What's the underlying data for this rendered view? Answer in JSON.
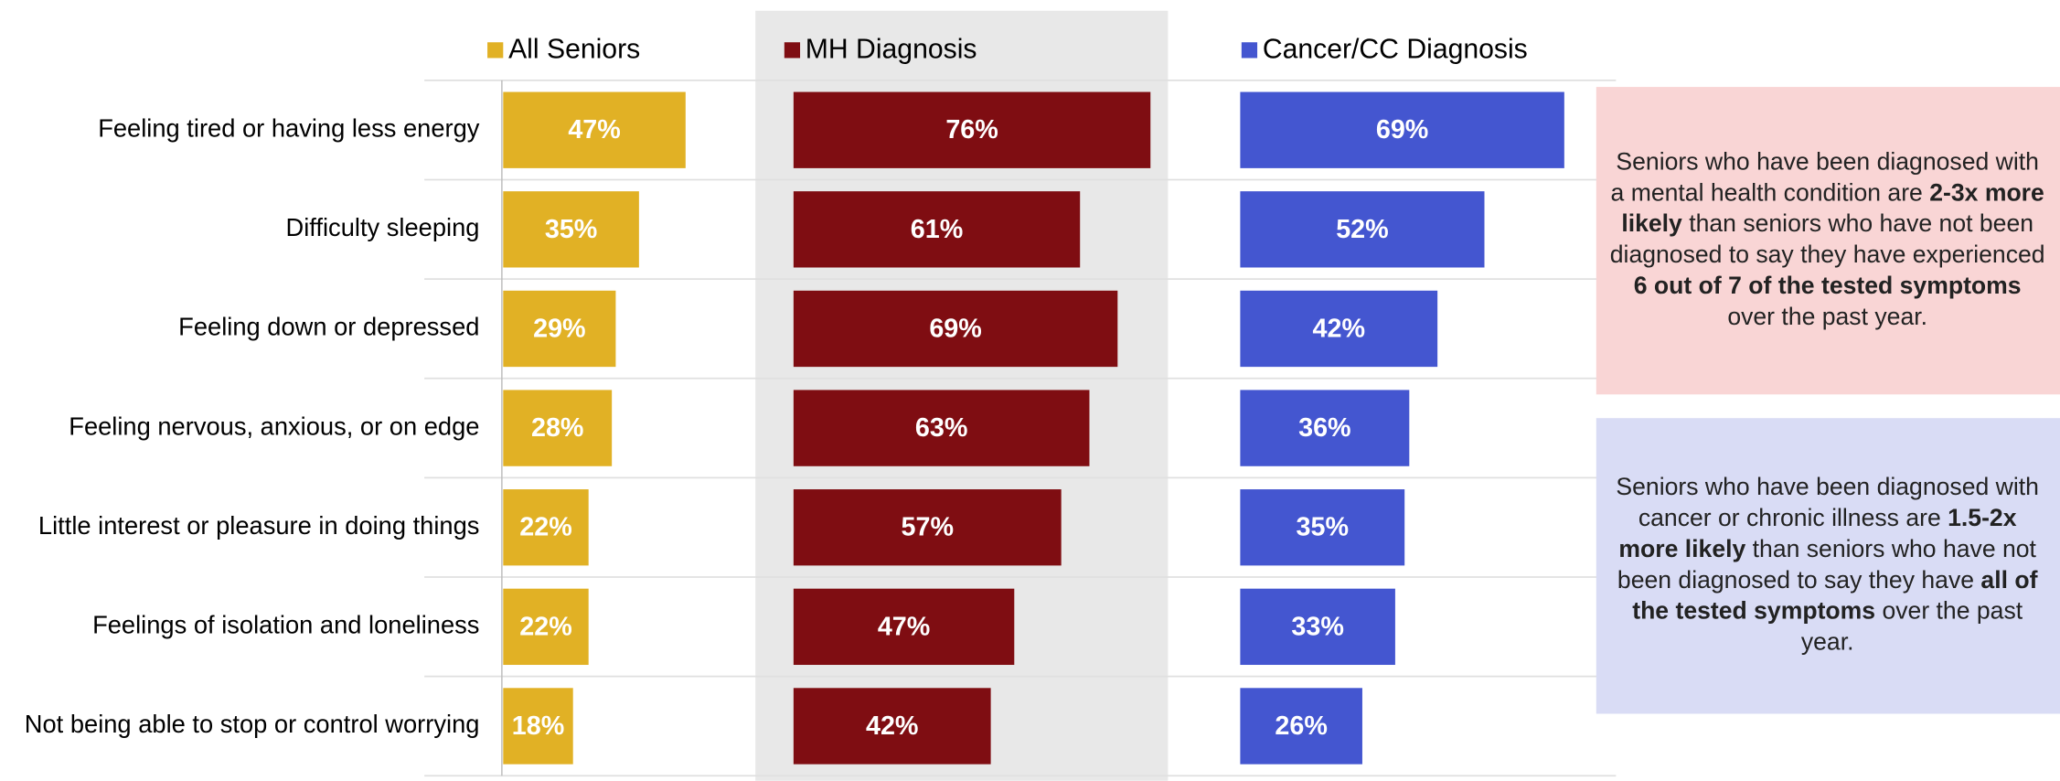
{
  "chart_data": {
    "type": "bar",
    "orientation": "horizontal",
    "categories": [
      "Feeling tired or having less energy",
      "Difficulty sleeping",
      "Feeling down or depressed",
      "Feeling nervous, anxious, or on edge",
      "Little interest or pleasure in doing things",
      "Feelings of isolation and loneliness",
      "Not being able to stop or control worrying"
    ],
    "series": [
      {
        "name": "All Seniors",
        "color": "#e1b125",
        "xlim": [
          0,
          65
        ],
        "values": [
          47,
          35,
          29,
          28,
          22,
          22,
          18
        ],
        "value_labels": [
          "47%",
          "35%",
          "29%",
          "28%",
          "22%",
          "22%",
          "18%"
        ]
      },
      {
        "name": "MH Diagnosis",
        "color": "#7f0d12",
        "xlim": [
          0,
          80
        ],
        "highlight": "#e8e8e8",
        "values": [
          76,
          61,
          69,
          63,
          57,
          47,
          42
        ],
        "value_labels": [
          "76%",
          "61%",
          "69%",
          "63%",
          "57%",
          "47%",
          "42%"
        ]
      },
      {
        "name": "Cancer/CC Diagnosis",
        "color": "#4456d0",
        "xlim": [
          0,
          80
        ],
        "values": [
          69,
          52,
          42,
          36,
          35,
          33,
          26
        ],
        "value_labels": [
          "69%",
          "52%",
          "42%",
          "36%",
          "35%",
          "33%",
          "26%"
        ]
      }
    ],
    "annotations": [
      {
        "fill": "#f9d5d5",
        "lines": [
          [
            {
              "text": "Seniors who have been diagnosed with",
              "bold": false
            }
          ],
          [
            {
              "text": "a mental health condition are ",
              "bold": false
            },
            {
              "text": "2-3x more",
              "bold": true
            }
          ],
          [
            {
              "text": "likely",
              "bold": true
            },
            {
              "text": " than seniors who have not been",
              "bold": false
            }
          ],
          [
            {
              "text": "diagnosed to say they have experienced",
              "bold": false
            }
          ],
          [
            {
              "text": "6 out of 7 of the tested symptoms",
              "bold": true
            }
          ],
          [
            {
              "text": "over the past year.",
              "bold": false
            }
          ]
        ]
      },
      {
        "fill": "#d9dcf5",
        "lines": [
          [
            {
              "text": "Seniors who have been diagnosed with",
              "bold": false
            }
          ],
          [
            {
              "text": "cancer or chronic illness are ",
              "bold": false
            },
            {
              "text": "1.5-2x",
              "bold": true
            }
          ],
          [
            {
              "text": "more likely",
              "bold": true
            },
            {
              "text": " than seniors who have not",
              "bold": false
            }
          ],
          [
            {
              "text": "been diagnosed to say they have ",
              "bold": false
            },
            {
              "text": "all of",
              "bold": true
            }
          ],
          [
            {
              "text": "the tested symptoms",
              "bold": true
            },
            {
              "text": " over the past",
              "bold": false
            }
          ],
          [
            {
              "text": "year.",
              "bold": false
            }
          ]
        ]
      }
    ]
  }
}
